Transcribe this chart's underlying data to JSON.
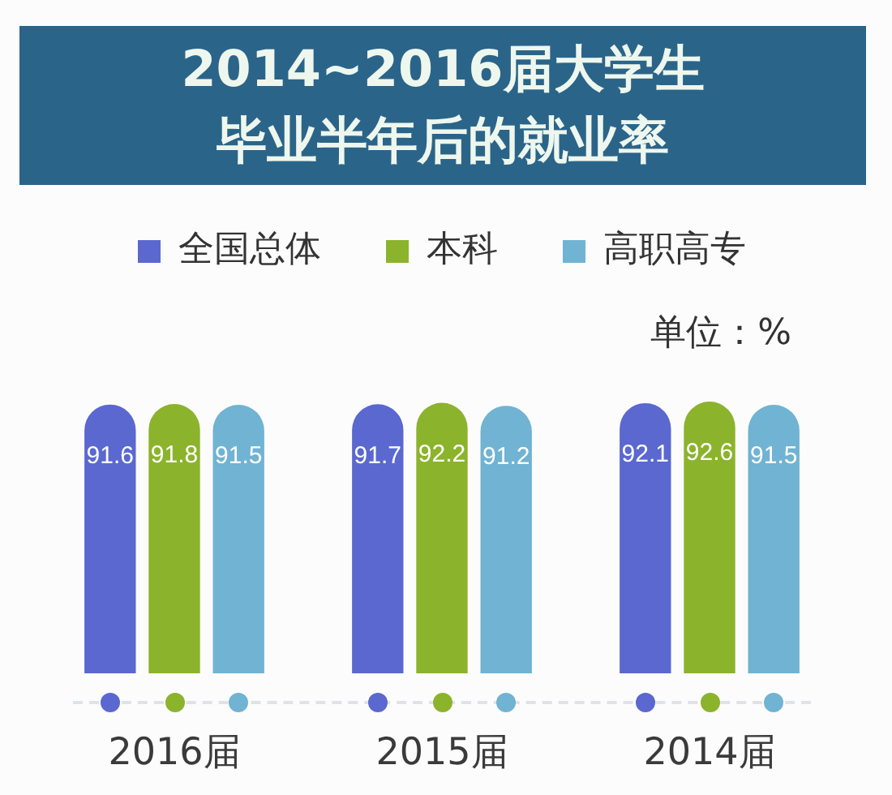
{
  "chart_data": {
    "type": "bar",
    "title": "2014~2016届大学生毕业半年后的就业率",
    "categories": [
      "2016届",
      "2015届",
      "2014届"
    ],
    "series": [
      {
        "name": "全国总体",
        "color": "#5a68cf",
        "values": [
          91.6,
          91.7,
          92.1
        ]
      },
      {
        "name": "本科",
        "color": "#8cb32c",
        "values": [
          91.8,
          92.2,
          92.6
        ]
      },
      {
        "name": "高职高专",
        "color": "#70b3d3",
        "values": [
          91.5,
          91.2,
          91.5
        ]
      }
    ],
    "data_labels": true,
    "legend": "top",
    "tick_labels": "x",
    "annotations": [
      "单位：%"
    ]
  }
}
